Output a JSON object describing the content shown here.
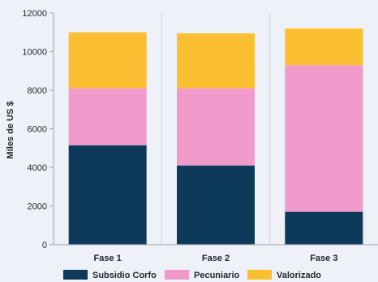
{
  "chart_data": {
    "type": "bar",
    "stacked": true,
    "categories": [
      "Fase 1",
      "Fase 2",
      "Fase 3"
    ],
    "series": [
      {
        "name": "Subsidio Corfo",
        "color": "#0d3a5b",
        "values": [
          5150,
          4100,
          1700
        ]
      },
      {
        "name": "Pecuniario",
        "color": "#f09bcb",
        "values": [
          2950,
          4000,
          7600
        ]
      },
      {
        "name": "Valorizado",
        "color": "#fcbf32",
        "values": [
          2900,
          2850,
          1900
        ]
      }
    ],
    "xlabel": "",
    "ylabel": "Miles de US $",
    "ylim": [
      0,
      12000
    ],
    "yticks": [
      0,
      2000,
      4000,
      6000,
      8000,
      10000,
      12000
    ],
    "grid": "vertical",
    "legend_position": "bottom"
  }
}
